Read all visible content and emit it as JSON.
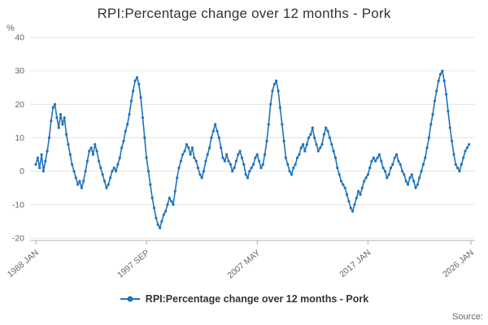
{
  "title": "RPI:Percentage change over 12 months - Pork",
  "y_axis_unit": "%",
  "legend": {
    "label": "RPI:Percentage change over 12 months - Pork"
  },
  "source_label": "Source:",
  "colors": {
    "line": "#2073bc",
    "grid": "#e4e4e4",
    "axis": "#b0b0b0",
    "text": "#666666",
    "title": "#333333"
  },
  "chart_data": {
    "type": "line",
    "title": "RPI:Percentage change over 12 months - Pork",
    "xlabel": "",
    "ylabel": "%",
    "ylim": [
      -20,
      40
    ],
    "y_ticks": [
      40,
      30,
      20,
      10,
      0,
      -10,
      -20
    ],
    "x_tick_labels": [
      "1988 JAN",
      "1997 SEP",
      "2007 MAY",
      "2017 JAN",
      "2026 JAN"
    ],
    "x_tick_positions": [
      1988.0,
      1997.6667,
      2007.3333,
      2017.0,
      2026.0
    ],
    "grid": true,
    "legend_position": "bottom",
    "x_start_year": 1988,
    "x_step_years": 0.1666667,
    "values": [
      2,
      4,
      1,
      5,
      0,
      3,
      6,
      10,
      15,
      19,
      20,
      16,
      13,
      17,
      14,
      16,
      11,
      8,
      5,
      2,
      0,
      -2,
      -4,
      -3,
      -5,
      -3,
      0,
      3,
      6,
      7,
      5,
      8,
      6,
      3,
      1,
      -1,
      -3,
      -5,
      -4,
      -2,
      0,
      1,
      0,
      2,
      4,
      7,
      9,
      12,
      14,
      17,
      21,
      24,
      27,
      28,
      26,
      22,
      16,
      10,
      4,
      0,
      -4,
      -8,
      -11,
      -14,
      -16,
      -17,
      -15,
      -13,
      -12,
      -10,
      -8,
      -9,
      -10,
      -6,
      -2,
      1,
      3,
      5,
      6,
      8,
      7,
      5,
      7,
      4,
      3,
      1,
      -1,
      -2,
      0,
      3,
      5,
      7,
      10,
      12,
      14,
      12,
      10,
      7,
      4,
      3,
      5,
      3,
      2,
      0,
      1,
      3,
      5,
      6,
      4,
      2,
      -1,
      -2,
      0,
      1,
      2,
      4,
      5,
      3,
      1,
      2,
      5,
      9,
      14,
      20,
      24,
      26,
      27,
      24,
      19,
      14,
      9,
      4,
      2,
      0,
      -1,
      1,
      2,
      4,
      5,
      7,
      8,
      6,
      8,
      10,
      11,
      13,
      10,
      8,
      6,
      7,
      8,
      11,
      13,
      12,
      10,
      8,
      6,
      4,
      1,
      -1,
      -3,
      -4,
      -5,
      -7,
      -9,
      -11,
      -12,
      -10,
      -8,
      -6,
      -7,
      -5,
      -3,
      -2,
      -1,
      1,
      3,
      4,
      3,
      4,
      5,
      3,
      1,
      0,
      -2,
      -1,
      1,
      2,
      4,
      5,
      3,
      2,
      0,
      -1,
      -3,
      -4,
      -2,
      -1,
      -3,
      -5,
      -4,
      -2,
      0,
      2,
      4,
      7,
      10,
      14,
      17,
      21,
      24,
      27,
      29,
      30,
      27,
      23,
      18,
      13,
      9,
      5,
      2,
      1,
      0,
      2,
      4,
      6,
      7,
      8
    ]
  }
}
